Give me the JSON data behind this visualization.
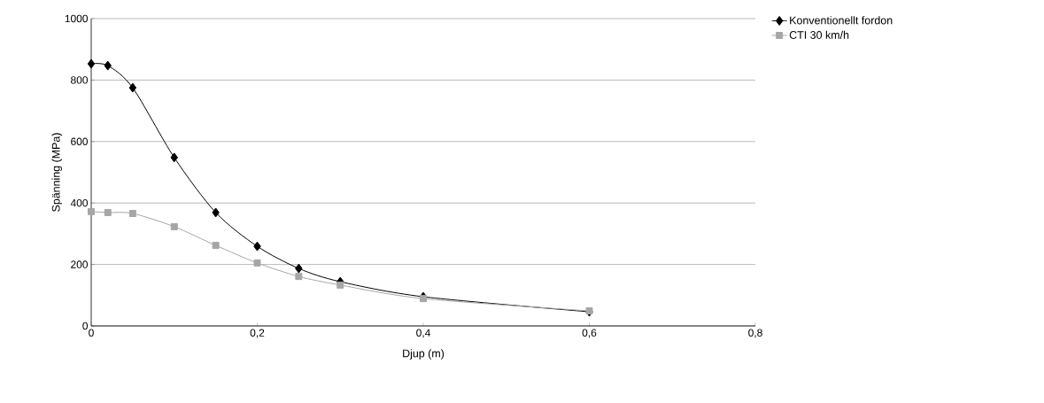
{
  "chart_data": {
    "type": "line",
    "xlabel": "Djup  (m)",
    "ylabel": "Spänning (MPa)",
    "x": [
      0,
      0.02,
      0.05,
      0.1,
      0.15,
      0.2,
      0.25,
      0.3,
      0.4,
      0.6
    ],
    "series": [
      {
        "name": "Konventionellt fordon",
        "color": "#000000",
        "marker": "diamond",
        "values": [
          853,
          847,
          775,
          548,
          369,
          259,
          187,
          144,
          95,
          46
        ]
      },
      {
        "name": "CTI 30 km/h",
        "color": "#a6a6a6",
        "marker": "square",
        "values": [
          372,
          369,
          366,
          323,
          262,
          205,
          161,
          133,
          89,
          49
        ]
      }
    ],
    "xlim": [
      0,
      0.8
    ],
    "xticks": [
      0,
      {
        "value": 0.2,
        "label": "0,2"
      },
      {
        "value": 0.4,
        "label": "0,4"
      },
      {
        "value": 0.6,
        "label": "0,6"
      },
      {
        "value": 0.8,
        "label": "0,8"
      }
    ],
    "ylim": [
      0,
      1000
    ],
    "yticks": [
      0,
      200,
      400,
      600,
      800,
      1000
    ],
    "grid": "y",
    "legend": "top right",
    "line_style": "solid"
  }
}
